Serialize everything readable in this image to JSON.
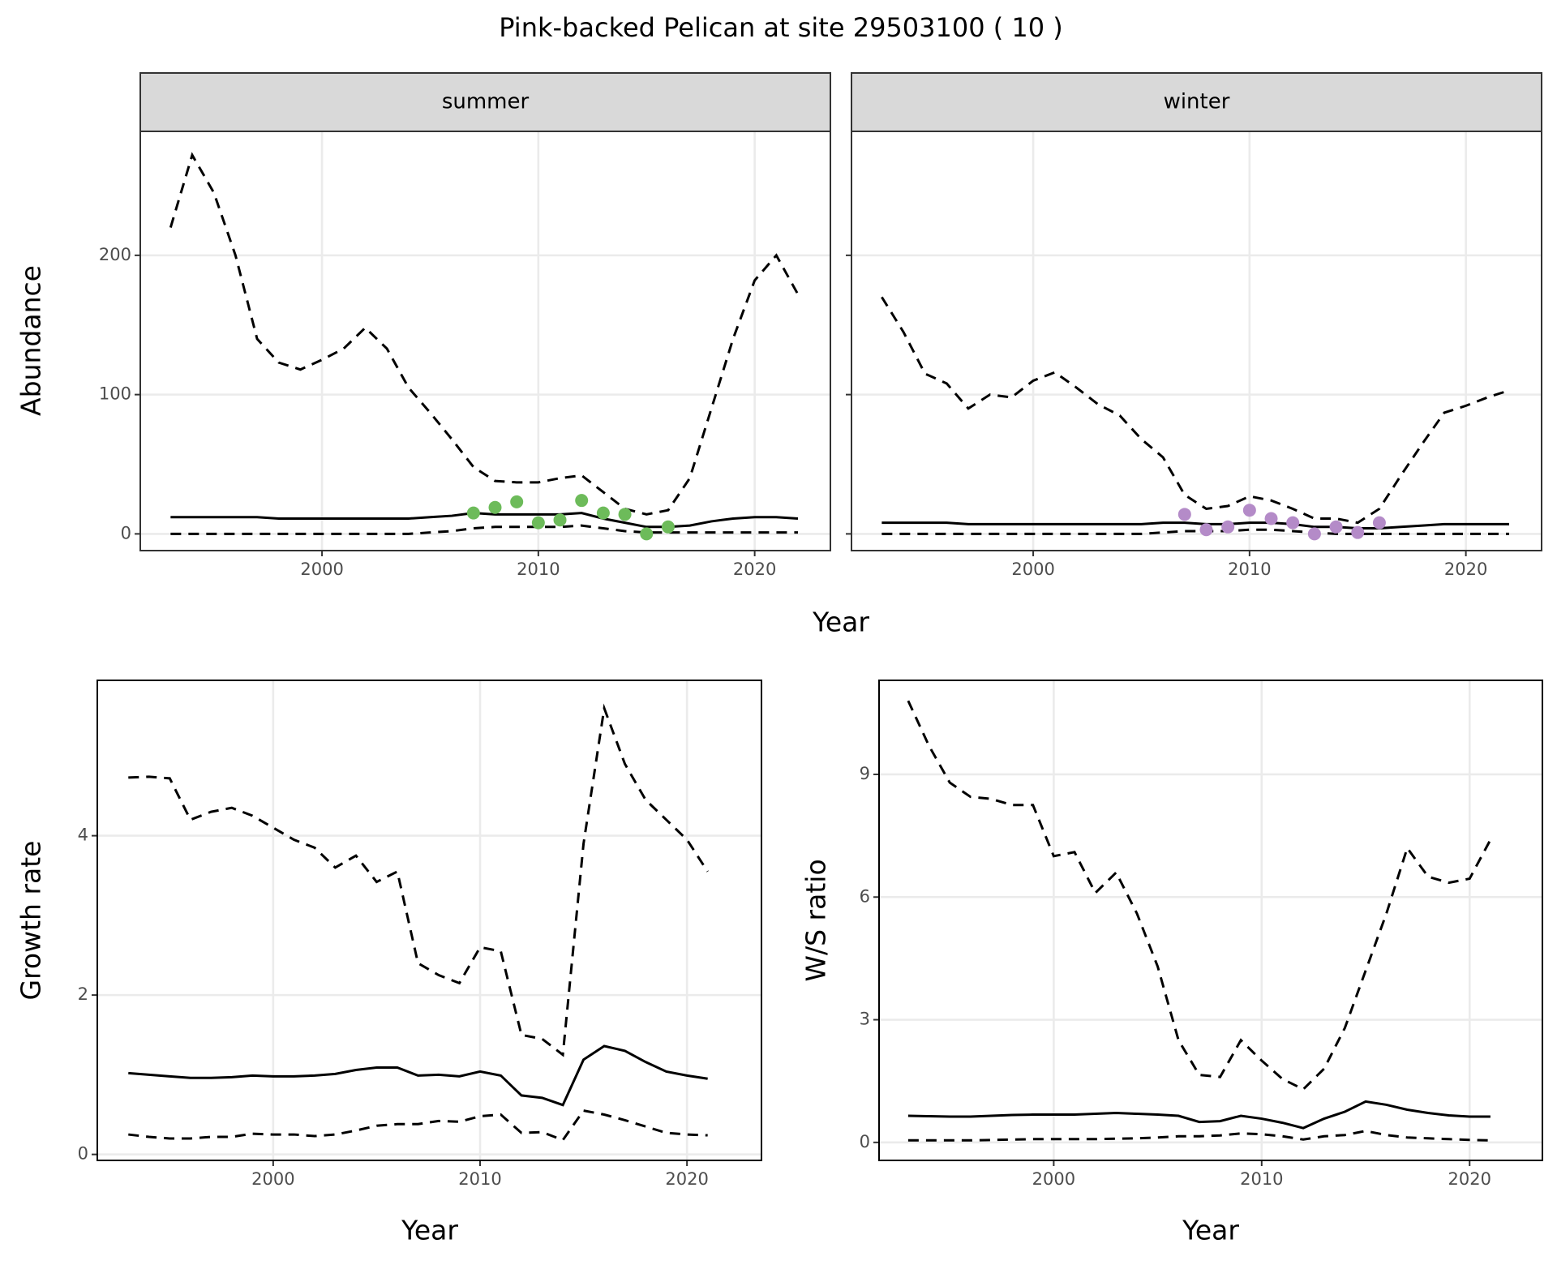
{
  "title": "Pink-backed Pelican at site 29503100 ( 10 )",
  "chart_data": [
    {
      "type": "line",
      "facet": "summer",
      "xlabel": "Year",
      "ylabel": "Abundance",
      "xlim": [
        1991.6,
        2023.5
      ],
      "ylim": [
        -12,
        289
      ],
      "xticks": [
        2000,
        2010,
        2020
      ],
      "yticks": [
        0,
        100,
        200
      ],
      "grid": true,
      "x": [
        1993,
        1994,
        1995,
        1996,
        1997,
        1998,
        1999,
        2000,
        2001,
        2002,
        2003,
        2004,
        2005,
        2006,
        2007,
        2008,
        2009,
        2010,
        2011,
        2012,
        2013,
        2014,
        2015,
        2016,
        2017,
        2018,
        2019,
        2020,
        2021,
        2022
      ],
      "series": [
        {
          "style": "dashed",
          "color": "#000000",
          "values": [
            220,
            272,
            245,
            200,
            140,
            123,
            118,
            125,
            133,
            148,
            133,
            105,
            87,
            68,
            48,
            38,
            37,
            37,
            40,
            42,
            30,
            18,
            14,
            17,
            40,
            90,
            140,
            182,
            200,
            172
          ]
        },
        {
          "style": "solid",
          "color": "#000000",
          "values": [
            12,
            12,
            12,
            12,
            12,
            11,
            11,
            11,
            11,
            11,
            11,
            11,
            12,
            13,
            15,
            14,
            14,
            14,
            14,
            15,
            11,
            8,
            5,
            5,
            6,
            9,
            11,
            12,
            12,
            11
          ]
        },
        {
          "style": "dashed",
          "color": "#000000",
          "values": [
            0,
            0,
            0,
            0,
            0,
            0,
            0,
            0,
            0,
            0,
            0,
            0,
            1,
            2,
            4,
            5,
            5,
            5,
            5,
            6,
            4,
            2,
            1,
            1,
            1,
            1,
            1,
            1,
            1,
            1
          ]
        },
        {
          "style": "points",
          "color": "#6dbb5a",
          "x": [
            2007,
            2008,
            2009,
            2010,
            2011,
            2012,
            2013,
            2014,
            2015,
            2016
          ],
          "values": [
            15,
            19,
            23,
            8,
            10,
            24,
            15,
            14,
            0,
            5
          ]
        }
      ]
    },
    {
      "type": "line",
      "facet": "winter",
      "show_yticklabels": false,
      "xlim": [
        1991.6,
        2023.5
      ],
      "ylim": [
        -12,
        289
      ],
      "xticks": [
        2000,
        2010,
        2020
      ],
      "yticks": [
        0,
        100,
        200
      ],
      "grid": true,
      "x": [
        1993,
        1994,
        1995,
        1996,
        1997,
        1998,
        1999,
        2000,
        2001,
        2002,
        2003,
        2004,
        2005,
        2006,
        2007,
        2008,
        2009,
        2010,
        2011,
        2012,
        2013,
        2014,
        2015,
        2016,
        2017,
        2018,
        2019,
        2020,
        2021,
        2022
      ],
      "series": [
        {
          "style": "dashed",
          "color": "#000000",
          "values": [
            170,
            145,
            115,
            108,
            90,
            100,
            98,
            110,
            116,
            105,
            93,
            85,
            68,
            55,
            28,
            18,
            20,
            27,
            24,
            18,
            11,
            11,
            8,
            18,
            42,
            65,
            87,
            92,
            98,
            103
          ]
        },
        {
          "style": "solid",
          "color": "#000000",
          "values": [
            8,
            8,
            8,
            8,
            7,
            7,
            7,
            7,
            7,
            7,
            7,
            7,
            7,
            8,
            8,
            7,
            7,
            8,
            8,
            7,
            5,
            5,
            4,
            4,
            5,
            6,
            7,
            7,
            7,
            7
          ]
        },
        {
          "style": "dashed",
          "color": "#000000",
          "values": [
            0,
            0,
            0,
            0,
            0,
            0,
            0,
            0,
            0,
            0,
            0,
            0,
            0,
            1,
            2,
            2,
            2,
            3,
            3,
            2,
            1,
            0,
            0,
            0,
            0,
            0,
            0,
            0,
            0,
            0
          ]
        },
        {
          "style": "points",
          "color": "#b48bc8",
          "x": [
            2007,
            2008,
            2009,
            2010,
            2011,
            2012,
            2013,
            2014,
            2015,
            2016
          ],
          "values": [
            14,
            3,
            5,
            17,
            11,
            8,
            0,
            5,
            1,
            8
          ]
        }
      ]
    },
    {
      "type": "line",
      "xlabel": "Year",
      "ylabel": "Growth rate",
      "xlim": [
        1991.5,
        2023.6
      ],
      "ylim": [
        -0.075,
        5.95
      ],
      "xticks": [
        2000,
        2010,
        2020
      ],
      "yticks": [
        0,
        2,
        4
      ],
      "grid": true,
      "x": [
        1993,
        1994,
        1995,
        1996,
        1997,
        1998,
        1999,
        2000,
        2001,
        2002,
        2003,
        2004,
        2005,
        2006,
        2007,
        2008,
        2009,
        2010,
        2011,
        2012,
        2013,
        2014,
        2015,
        2016,
        2017,
        2018,
        2019,
        2020,
        2021
      ],
      "series": [
        {
          "style": "dashed",
          "color": "#000000",
          "values": [
            4.73,
            4.74,
            4.72,
            4.2,
            4.3,
            4.35,
            4.25,
            4.1,
            3.95,
            3.85,
            3.6,
            3.75,
            3.42,
            3.55,
            2.4,
            2.25,
            2.15,
            2.6,
            2.55,
            1.5,
            1.45,
            1.25,
            3.9,
            5.6,
            4.9,
            4.45,
            4.2,
            3.95,
            3.55
          ]
        },
        {
          "style": "solid",
          "color": "#000000",
          "values": [
            1.02,
            1.0,
            0.98,
            0.96,
            0.96,
            0.97,
            0.99,
            0.98,
            0.98,
            0.99,
            1.01,
            1.06,
            1.09,
            1.09,
            0.99,
            1.0,
            0.98,
            1.04,
            0.99,
            0.74,
            0.71,
            0.62,
            1.19,
            1.36,
            1.3,
            1.16,
            1.04,
            0.99,
            0.95
          ]
        },
        {
          "style": "dashed",
          "color": "#000000",
          "values": [
            0.25,
            0.22,
            0.2,
            0.2,
            0.22,
            0.22,
            0.26,
            0.25,
            0.25,
            0.23,
            0.25,
            0.3,
            0.36,
            0.38,
            0.38,
            0.42,
            0.41,
            0.48,
            0.5,
            0.27,
            0.28,
            0.18,
            0.55,
            0.5,
            0.43,
            0.35,
            0.27,
            0.25,
            0.24
          ]
        }
      ]
    },
    {
      "type": "line",
      "xlabel": "Year",
      "ylabel": "W/S ratio",
      "xlim": [
        1991.6,
        2023.5
      ],
      "ylim": [
        -0.44,
        11.3
      ],
      "xticks": [
        2000,
        2010,
        2020
      ],
      "yticks": [
        0,
        3,
        6,
        9
      ],
      "grid": true,
      "x": [
        1993,
        1994,
        1995,
        1996,
        1997,
        1998,
        1999,
        2000,
        2001,
        2002,
        2003,
        2004,
        2005,
        2006,
        2007,
        2008,
        2009,
        2010,
        2011,
        2012,
        2013,
        2014,
        2015,
        2016,
        2017,
        2018,
        2019,
        2020,
        2021
      ],
      "series": [
        {
          "style": "dashed",
          "color": "#000000",
          "values": [
            10.8,
            9.7,
            8.8,
            8.45,
            8.4,
            8.25,
            8.25,
            7.0,
            7.1,
            6.1,
            6.6,
            5.6,
            4.3,
            2.5,
            1.65,
            1.6,
            2.5,
            2.0,
            1.55,
            1.3,
            1.8,
            2.8,
            4.2,
            5.6,
            7.2,
            6.5,
            6.35,
            6.45,
            7.4
          ]
        },
        {
          "style": "solid",
          "color": "#000000",
          "values": [
            0.65,
            0.64,
            0.63,
            0.63,
            0.65,
            0.67,
            0.68,
            0.68,
            0.68,
            0.7,
            0.72,
            0.7,
            0.68,
            0.65,
            0.5,
            0.52,
            0.65,
            0.58,
            0.48,
            0.35,
            0.58,
            0.75,
            1.0,
            0.92,
            0.8,
            0.72,
            0.66,
            0.63,
            0.63
          ]
        },
        {
          "style": "dashed",
          "color": "#000000",
          "values": [
            0.05,
            0.05,
            0.05,
            0.05,
            0.06,
            0.07,
            0.08,
            0.08,
            0.08,
            0.08,
            0.09,
            0.1,
            0.12,
            0.15,
            0.15,
            0.17,
            0.22,
            0.2,
            0.15,
            0.07,
            0.15,
            0.18,
            0.28,
            0.18,
            0.12,
            0.1,
            0.08,
            0.06,
            0.05
          ]
        }
      ]
    }
  ]
}
